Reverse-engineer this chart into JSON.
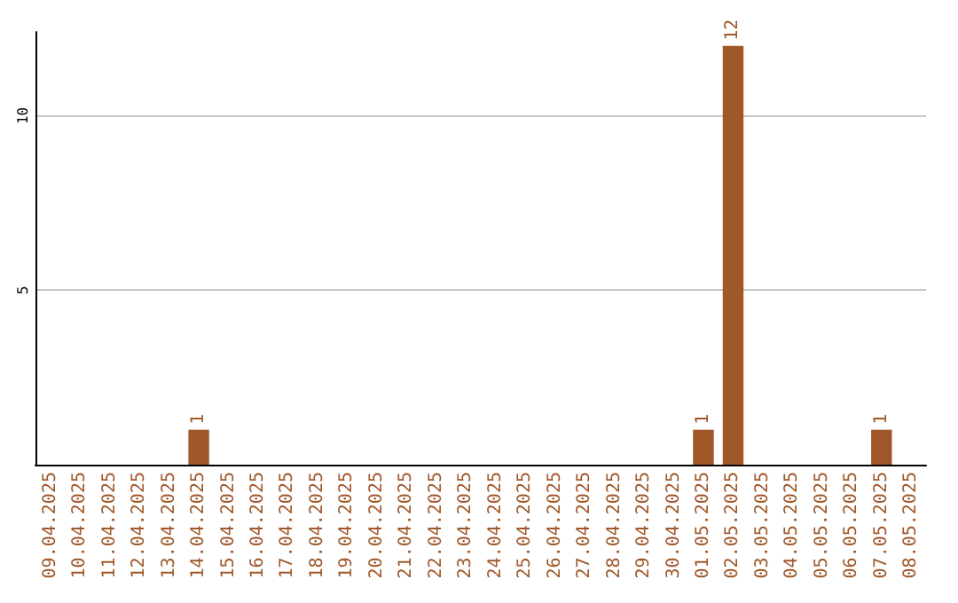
{
  "chart_data": {
    "type": "bar",
    "categories": [
      "09.04.2025",
      "10.04.2025",
      "11.04.2025",
      "12.04.2025",
      "13.04.2025",
      "14.04.2025",
      "15.04.2025",
      "16.04.2025",
      "17.04.2025",
      "18.04.2025",
      "19.04.2025",
      "20.04.2025",
      "21.04.2025",
      "22.04.2025",
      "23.04.2025",
      "24.04.2025",
      "25.04.2025",
      "26.04.2025",
      "27.04.2025",
      "28.04.2025",
      "29.04.2025",
      "30.04.2025",
      "01.05.2025",
      "02.05.2025",
      "03.05.2025",
      "04.05.2025",
      "05.05.2025",
      "06.05.2025",
      "07.05.2025",
      "08.05.2025"
    ],
    "values": [
      0,
      0,
      0,
      0,
      0,
      1,
      0,
      0,
      0,
      0,
      0,
      0,
      0,
      0,
      0,
      0,
      0,
      0,
      0,
      0,
      0,
      0,
      1,
      12,
      0,
      0,
      0,
      0,
      1,
      0
    ],
    "value_labels": [
      null,
      null,
      null,
      null,
      null,
      "1",
      null,
      null,
      null,
      null,
      null,
      null,
      null,
      null,
      null,
      null,
      null,
      null,
      null,
      null,
      null,
      null,
      "1",
      "12",
      null,
      null,
      null,
      null,
      "1",
      null
    ],
    "color": "#a0582a",
    "ylim": [
      0,
      12.4
    ],
    "yticks": [
      5,
      10
    ],
    "grid": "y"
  }
}
